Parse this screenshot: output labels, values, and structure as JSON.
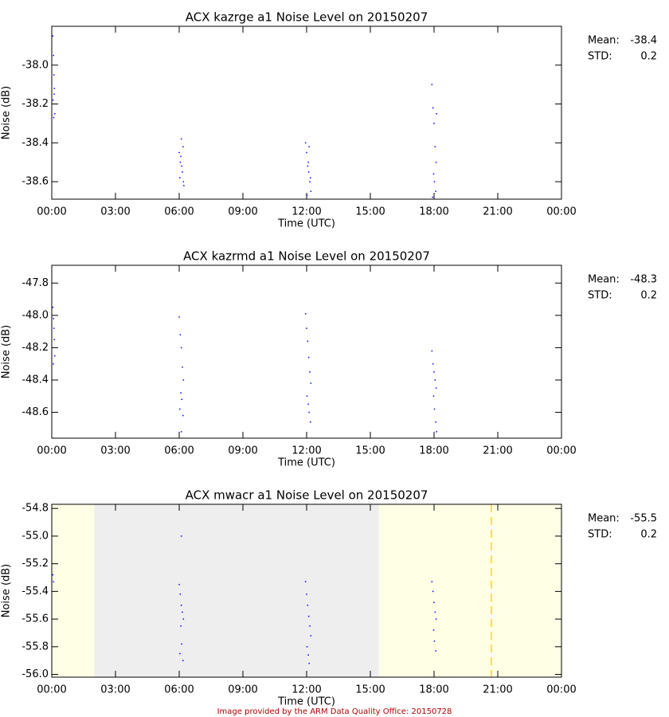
{
  "chart_data": [
    {
      "type": "scatter",
      "title": "ACX kazrge a1 Noise Level on 20150207",
      "x_label": "Time (UTC)",
      "y_label": "Noise (dB)",
      "color": "#0000ff",
      "xlim": [
        0,
        24
      ],
      "ylim": [
        -38.69,
        -37.8
      ],
      "xticks": [
        {
          "value": 0,
          "label": "00:00"
        },
        {
          "value": 3,
          "label": "03:00"
        },
        {
          "value": 6,
          "label": "06:00"
        },
        {
          "value": 9,
          "label": "09:00"
        },
        {
          "value": 12,
          "label": "12:00"
        },
        {
          "value": 15,
          "label": "15:00"
        },
        {
          "value": 18,
          "label": "18:00"
        },
        {
          "value": 21,
          "label": "21:00"
        },
        {
          "value": 24,
          "label": "00:00"
        }
      ],
      "yticks": [
        {
          "value": -38,
          "label": "-38.0"
        },
        -38.2,
        -38.4,
        -38.6
      ],
      "x": [
        0.05,
        0.08,
        0.1,
        0.12,
        0.06,
        0.14,
        0.09,
        0.11,
        6.0,
        6.05,
        6.1,
        6.15,
        6.2,
        6.08,
        6.12,
        6.18,
        6.03,
        6.22,
        11.95,
        12.0,
        12.05,
        12.1,
        12.15,
        12.2,
        12.02,
        12.08,
        12.12,
        12.18,
        17.9,
        17.95,
        18.0,
        18.05,
        18.1,
        17.98,
        18.02,
        18.08,
        17.93,
        18.12
      ],
      "values": [
        -37.85,
        -37.95,
        -38.05,
        -38.12,
        -38.18,
        -38.25,
        -38.27,
        -38.15,
        -38.45,
        -38.5,
        -38.38,
        -38.55,
        -38.6,
        -38.47,
        -38.52,
        -38.42,
        -38.58,
        -38.62,
        -38.4,
        -38.45,
        -38.52,
        -38.55,
        -38.6,
        -38.65,
        -38.67,
        -38.5,
        -38.42,
        -38.58,
        -38.1,
        -38.22,
        -38.3,
        -38.42,
        -38.5,
        -38.56,
        -38.6,
        -38.65,
        -38.68,
        -38.25
      ],
      "stats": [
        {
          "label": "Mean:",
          "value": -38.4
        },
        {
          "label": "STD:",
          "value": 0.2
        }
      ]
    },
    {
      "type": "scatter",
      "title": "ACX kazrmd a1 Noise Level on 20150207",
      "x_label": "Time (UTC)",
      "y_label": "Noise (dB)",
      "color": "#0000ff",
      "xlim": [
        0,
        24
      ],
      "ylim": [
        -48.76,
        -47.69
      ],
      "xticks": [
        {
          "value": 0,
          "label": "00:00"
        },
        {
          "value": 3,
          "label": "03:00"
        },
        {
          "value": 6,
          "label": "06:00"
        },
        {
          "value": 9,
          "label": "09:00"
        },
        {
          "value": 12,
          "label": "12:00"
        },
        {
          "value": 15,
          "label": "15:00"
        },
        {
          "value": 18,
          "label": "18:00"
        },
        {
          "value": 21,
          "label": "21:00"
        },
        {
          "value": 24,
          "label": "00:00"
        }
      ],
      "yticks": [
        -47.8,
        {
          "value": -48,
          "label": "-48.0"
        },
        -48.2,
        -48.4,
        -48.6
      ],
      "x": [
        0.05,
        0.08,
        0.1,
        0.12,
        0.14,
        0.07,
        6.0,
        6.05,
        6.1,
        6.15,
        6.2,
        6.08,
        6.12,
        6.03,
        6.18,
        6.1,
        11.95,
        12.0,
        12.05,
        12.1,
        12.15,
        12.2,
        12.02,
        12.08,
        12.12,
        12.18,
        17.9,
        17.95,
        18.0,
        18.05,
        18.1,
        17.98,
        18.02,
        18.08,
        18.12
      ],
      "values": [
        -47.95,
        -48.02,
        -48.08,
        -48.15,
        -48.25,
        -48.3,
        -48.01,
        -48.12,
        -48.2,
        -48.32,
        -48.4,
        -48.48,
        -48.52,
        -48.58,
        -48.62,
        -48.72,
        -47.99,
        -48.08,
        -48.16,
        -48.26,
        -48.35,
        -48.42,
        -48.5,
        -48.55,
        -48.6,
        -48.66,
        -48.22,
        -48.3,
        -48.35,
        -48.4,
        -48.45,
        -48.5,
        -48.58,
        -48.66,
        -48.72
      ],
      "stats": [
        {
          "label": "Mean:",
          "value": -48.3
        },
        {
          "label": "STD:",
          "value": 0.2
        }
      ]
    },
    {
      "type": "scatter",
      "title": "ACX mwacr a1 Noise Level on 20150207",
      "x_label": "Time (UTC)",
      "y_label": "Noise (dB)",
      "color": "#0000ff",
      "background_color": "#ffffe6",
      "shaded_span": {
        "start": 2.0,
        "end": 15.4,
        "color": "#eeeeee"
      },
      "vline": {
        "x": 20.7,
        "color": "#ffd700"
      },
      "xlim": [
        0,
        24
      ],
      "ylim": [
        -56.02,
        -54.77
      ],
      "xticks": [
        {
          "value": 0,
          "label": "00:00"
        },
        {
          "value": 3,
          "label": "03:00"
        },
        {
          "value": 6,
          "label": "06:00"
        },
        {
          "value": 9,
          "label": "09:00"
        },
        {
          "value": 12,
          "label": "12:00"
        },
        {
          "value": 15,
          "label": "15:00"
        },
        {
          "value": 18,
          "label": "18:00"
        },
        {
          "value": 21,
          "label": "21:00"
        },
        {
          "value": 24,
          "label": "00:00"
        }
      ],
      "yticks": [
        -54.8,
        {
          "value": -55,
          "label": "-55.0"
        },
        -55.2,
        -55.4,
        -55.6,
        -55.8,
        {
          "value": -56,
          "label": "-56.0"
        }
      ],
      "x": [
        0.05,
        0.08,
        6.1,
        6.0,
        6.05,
        6.1,
        6.15,
        6.2,
        6.08,
        6.12,
        6.03,
        6.18,
        11.95,
        12.0,
        12.05,
        12.1,
        12.15,
        12.2,
        12.02,
        12.08,
        12.12,
        17.9,
        17.95,
        18.0,
        18.05,
        18.1,
        17.98,
        18.02,
        18.08
      ],
      "values": [
        -55.28,
        -55.33,
        -55.0,
        -55.35,
        -55.42,
        -55.5,
        -55.55,
        -55.6,
        -55.65,
        -55.78,
        -55.85,
        -55.9,
        -55.33,
        -55.42,
        -55.5,
        -55.58,
        -55.65,
        -55.72,
        -55.8,
        -55.86,
        -55.92,
        -55.33,
        -55.4,
        -55.48,
        -55.55,
        -55.6,
        -55.68,
        -55.76,
        -55.83
      ],
      "stats": [
        {
          "label": "Mean:",
          "value": -55.5
        },
        {
          "label": "STD:",
          "value": 0.2
        }
      ]
    }
  ],
  "footer": "Image provided by the ARM Data Quality Office: 20150728"
}
